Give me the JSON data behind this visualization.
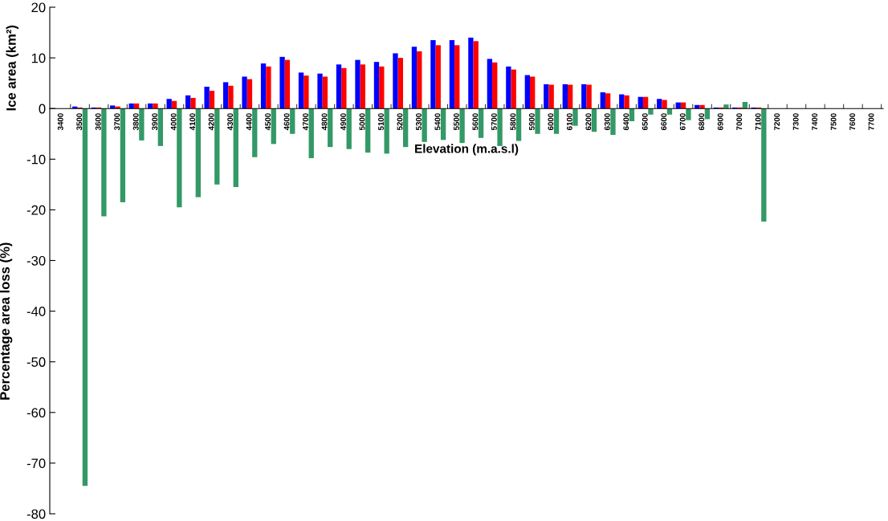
{
  "chart_data": {
    "type": "bar",
    "xlabel": "Elevation (m.a.s.l)",
    "ylabel": "Percentage area loss (%)",
    "annotations": [
      "Ice area (km²)"
    ],
    "categories": [
      "3400",
      "3500",
      "3600",
      "3700",
      "3800",
      "3900",
      "4000",
      "4100",
      "4200",
      "4300",
      "4400",
      "4500",
      "4600",
      "4700",
      "4800",
      "4900",
      "5000",
      "5100",
      "5200",
      "5300",
      "5400",
      "5500",
      "5600",
      "5700",
      "5800",
      "5900",
      "6000",
      "6100",
      "6200",
      "6300",
      "6400",
      "6500",
      "6600",
      "6700",
      "6800",
      "6900",
      "7000",
      "7100",
      "7200",
      "7300",
      "7400",
      "7500",
      "7600",
      "7700"
    ],
    "series": [
      {
        "color": "#0000ff",
        "values": [
          0,
          0.4,
          0.2,
          0.6,
          1.0,
          1.0,
          1.9,
          2.6,
          4.3,
          5.2,
          6.3,
          8.9,
          10.2,
          7.1,
          6.9,
          8.7,
          9.6,
          9.2,
          10.9,
          12.2,
          13.5,
          13.5,
          14.0,
          9.8,
          8.3,
          6.6,
          4.8,
          4.8,
          4.8,
          3.2,
          2.8,
          2.3,
          1.9,
          1.2,
          0.7,
          0.2,
          0.2,
          0.2,
          0,
          0,
          0,
          0,
          0,
          0
        ]
      },
      {
        "color": "#ff0000",
        "values": [
          0,
          0.2,
          0.2,
          0.4,
          1.0,
          1.0,
          1.5,
          2.1,
          3.5,
          4.5,
          5.8,
          8.3,
          9.6,
          6.5,
          6.3,
          8.0,
          8.7,
          8.3,
          10.0,
          11.3,
          12.5,
          12.5,
          13.3,
          9.1,
          7.7,
          6.3,
          4.7,
          4.7,
          4.7,
          3.0,
          2.6,
          2.3,
          1.7,
          1.2,
          0.7,
          0.2,
          0.2,
          0.2,
          0,
          0,
          0,
          0,
          0,
          0
        ]
      },
      {
        "color": "#339966",
        "values": [
          0,
          -74.5,
          -21.3,
          -18.5,
          -6.3,
          -7.4,
          -19.5,
          -17.5,
          -15,
          -15.5,
          -9.6,
          -7,
          -5,
          -9.8,
          -7.6,
          -8,
          -8.7,
          -8.9,
          -7.6,
          -6.6,
          -6.2,
          -6.8,
          -5.8,
          -7.4,
          -6.4,
          -5,
          -5,
          -3.4,
          -4.6,
          -5.2,
          -2.5,
          -1.2,
          -1.2,
          -2.3,
          -2.1,
          0.8,
          1.3,
          -22.3,
          0,
          0,
          0,
          0,
          0,
          0
        ]
      }
    ],
    "ylim": [
      -80,
      20
    ],
    "yticks": [
      -80,
      -70,
      -60,
      -50,
      -40,
      -30,
      -20,
      -10,
      0,
      10,
      20
    ],
    "grid": false,
    "legend": false
  }
}
